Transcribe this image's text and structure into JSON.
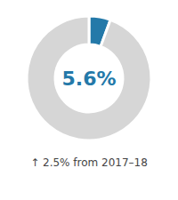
{
  "chart_data": {
    "type": "pie",
    "values": [
      5.6,
      94.4
    ],
    "colors": [
      "#2479a9",
      "#d6d6d6"
    ],
    "annotations": [
      "5.6%",
      "↑ 2.5% from 2017–18"
    ]
  }
}
